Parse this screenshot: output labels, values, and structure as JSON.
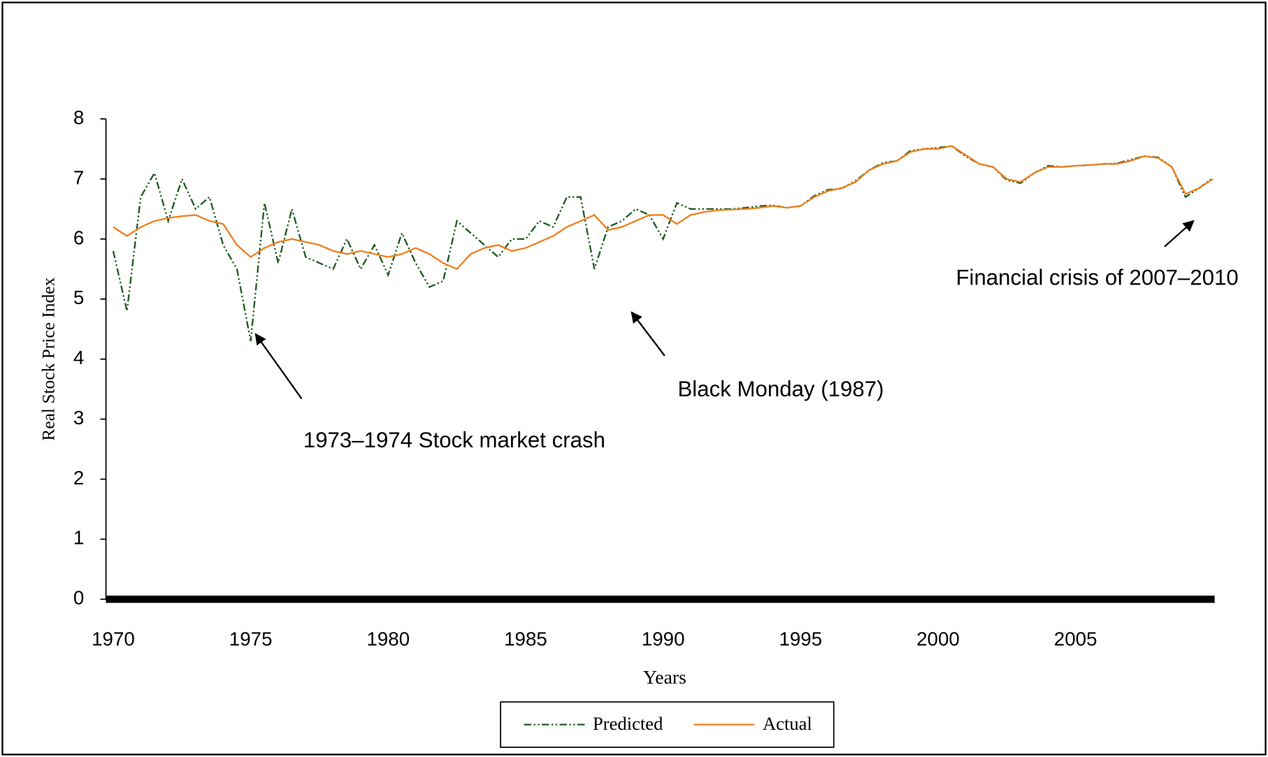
{
  "chart_data": {
    "type": "line",
    "x_label": "Years",
    "y_label": "Real Stock Price Index",
    "x": [
      1970,
      1970.5,
      1971,
      1971.5,
      1972,
      1972.5,
      1973,
      1973.5,
      1974,
      1974.5,
      1975,
      1975.5,
      1976,
      1976.5,
      1977,
      1977.5,
      1978,
      1978.5,
      1979,
      1979.5,
      1980,
      1980.5,
      1981,
      1981.5,
      1982,
      1982.5,
      1983,
      1983.5,
      1984,
      1984.5,
      1985,
      1985.5,
      1986,
      1986.5,
      1987,
      1987.5,
      1988,
      1988.5,
      1989,
      1989.5,
      1990,
      1990.5,
      1991,
      1991.5,
      1992,
      1992.5,
      1993,
      1993.5,
      1994,
      1994.5,
      1995,
      1995.5,
      1996,
      1996.5,
      1997,
      1997.5,
      1998,
      1998.5,
      1999,
      1999.5,
      2000,
      2000.5,
      2001,
      2001.5,
      2002,
      2002.5,
      2003,
      2003.5,
      2004,
      2004.5,
      2005,
      2005.5,
      2006,
      2006.5,
      2007,
      2007.5,
      2008,
      2008.5,
      2009,
      2009.5,
      2010
    ],
    "series": [
      {
        "name": "Predicted",
        "color": "#1e5a1e",
        "linestyle": "dash-dot-dot",
        "values": [
          5.8,
          4.8,
          6.7,
          7.1,
          6.3,
          7.0,
          6.5,
          6.7,
          5.9,
          5.5,
          4.3,
          6.6,
          5.6,
          6.5,
          5.7,
          5.6,
          5.5,
          6.0,
          5.5,
          5.9,
          5.4,
          6.1,
          5.6,
          5.2,
          5.3,
          6.3,
          6.1,
          5.9,
          5.7,
          6.0,
          6.0,
          6.3,
          6.2,
          6.7,
          6.7,
          5.5,
          6.2,
          6.3,
          6.5,
          6.4,
          6.0,
          6.6,
          6.5,
          6.5,
          6.5,
          6.5,
          6.52,
          6.55,
          6.56,
          6.52,
          6.55,
          6.72,
          6.82,
          6.84,
          6.97,
          7.15,
          7.27,
          7.3,
          7.47,
          7.5,
          7.52,
          7.55,
          7.38,
          7.25,
          7.2,
          6.98,
          6.93,
          7.1,
          7.22,
          7.2,
          7.22,
          7.23,
          7.25,
          7.26,
          7.32,
          7.38,
          7.36,
          7.2,
          6.7,
          6.85,
          7.02
        ]
      },
      {
        "name": "Actual",
        "color": "#f07f1e",
        "linestyle": "solid",
        "values": [
          6.2,
          6.05,
          6.2,
          6.3,
          6.35,
          6.38,
          6.4,
          6.3,
          6.25,
          5.9,
          5.7,
          5.85,
          5.95,
          6.0,
          5.95,
          5.9,
          5.8,
          5.75,
          5.8,
          5.75,
          5.7,
          5.75,
          5.85,
          5.75,
          5.6,
          5.5,
          5.75,
          5.85,
          5.9,
          5.8,
          5.85,
          5.95,
          6.05,
          6.2,
          6.3,
          6.4,
          6.15,
          6.2,
          6.3,
          6.4,
          6.4,
          6.25,
          6.4,
          6.45,
          6.48,
          6.49,
          6.5,
          6.52,
          6.55,
          6.52,
          6.55,
          6.7,
          6.8,
          6.85,
          6.95,
          7.15,
          7.25,
          7.3,
          7.45,
          7.5,
          7.5,
          7.55,
          7.4,
          7.25,
          7.2,
          7.0,
          6.95,
          7.1,
          7.2,
          7.2,
          7.22,
          7.23,
          7.25,
          7.25,
          7.3,
          7.38,
          7.35,
          7.2,
          6.75,
          6.85,
          7.0
        ]
      }
    ],
    "xlim": [
      1970,
      2010
    ],
    "ylim": [
      0,
      8
    ],
    "xticks": [
      1970,
      1975,
      1980,
      1985,
      1990,
      1995,
      2000,
      2005
    ],
    "yticks": [
      0,
      1,
      2,
      3,
      4,
      5,
      6,
      7,
      8
    ],
    "annotations": [
      "1973–1974  Stock market crash",
      "Black Monday (1987)",
      "Financial crisis of 2007–2010"
    ],
    "legend": "bottom"
  }
}
